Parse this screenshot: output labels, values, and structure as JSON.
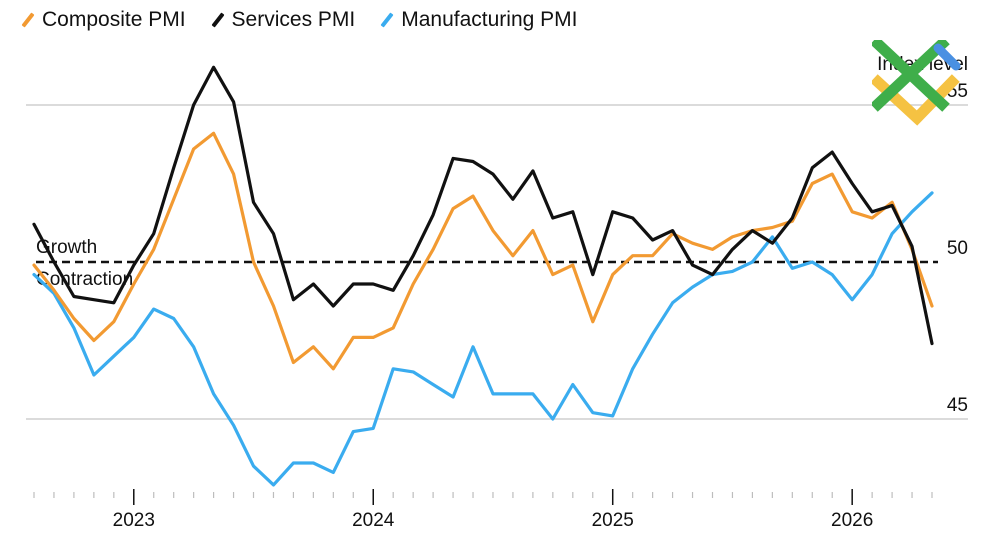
{
  "chart_data": {
    "type": "line",
    "title": "",
    "xlabel": "",
    "ylabel": "Index level",
    "ylim": [
      42.5,
      57
    ],
    "yticks": [
      45,
      50,
      55
    ],
    "x_start": "2022-08",
    "x_range": [
      2022.58,
      2026.38
    ],
    "x_ticks": [
      {
        "label": "2023",
        "value": 2023.0
      },
      {
        "label": "2024",
        "value": 2024.0
      },
      {
        "label": "2025",
        "value": 2025.0
      },
      {
        "label": "2026",
        "value": 2026.0
      }
    ],
    "reference_line": {
      "value": 50,
      "upper_label": "Growth",
      "lower_label": "Contraction"
    },
    "grid": true,
    "series": [
      {
        "name": "Composite PMI",
        "color": "#f29a32",
        "values": [
          49.9,
          49.1,
          48.2,
          47.5,
          48.1,
          49.3,
          50.4,
          52.0,
          53.6,
          54.1,
          52.8,
          50.0,
          48.6,
          46.8,
          47.3,
          46.6,
          47.6,
          47.6,
          47.9,
          49.3,
          50.4,
          51.7,
          52.1,
          51.0,
          50.2,
          51.0,
          49.6,
          49.9,
          48.1,
          49.6,
          50.2,
          50.2,
          50.9,
          50.6,
          50.4,
          50.8,
          51.0,
          51.1,
          51.3,
          52.5,
          52.8,
          51.6,
          51.4,
          51.9,
          50.4,
          48.6
        ]
      },
      {
        "name": "Services PMI",
        "color": "#111111",
        "values": [
          51.2,
          50.0,
          48.9,
          48.8,
          48.7,
          49.9,
          50.9,
          53.0,
          55.0,
          56.2,
          55.1,
          51.9,
          50.9,
          48.8,
          49.3,
          48.6,
          49.3,
          49.3,
          49.1,
          50.2,
          51.5,
          53.3,
          53.2,
          52.8,
          52.0,
          52.9,
          51.4,
          51.6,
          49.6,
          51.6,
          51.4,
          50.7,
          51.0,
          49.9,
          49.6,
          50.4,
          51.0,
          50.6,
          51.4,
          53.0,
          53.5,
          52.5,
          51.6,
          51.8,
          50.5,
          47.4
        ]
      },
      {
        "name": "Manufacturing PMI",
        "color": "#3aacef",
        "values": [
          49.6,
          49.0,
          47.9,
          46.4,
          47.0,
          47.6,
          48.5,
          48.2,
          47.3,
          45.8,
          44.8,
          43.5,
          42.9,
          43.6,
          43.6,
          43.3,
          44.6,
          44.7,
          46.6,
          46.5,
          46.1,
          45.7,
          47.3,
          45.8,
          45.8,
          45.8,
          45.0,
          46.1,
          45.2,
          45.1,
          46.6,
          47.7,
          48.7,
          49.2,
          49.6,
          49.7,
          50.0,
          50.8,
          49.8,
          50.0,
          49.6,
          48.8,
          49.6,
          50.9,
          51.6,
          52.2
        ]
      }
    ]
  }
}
